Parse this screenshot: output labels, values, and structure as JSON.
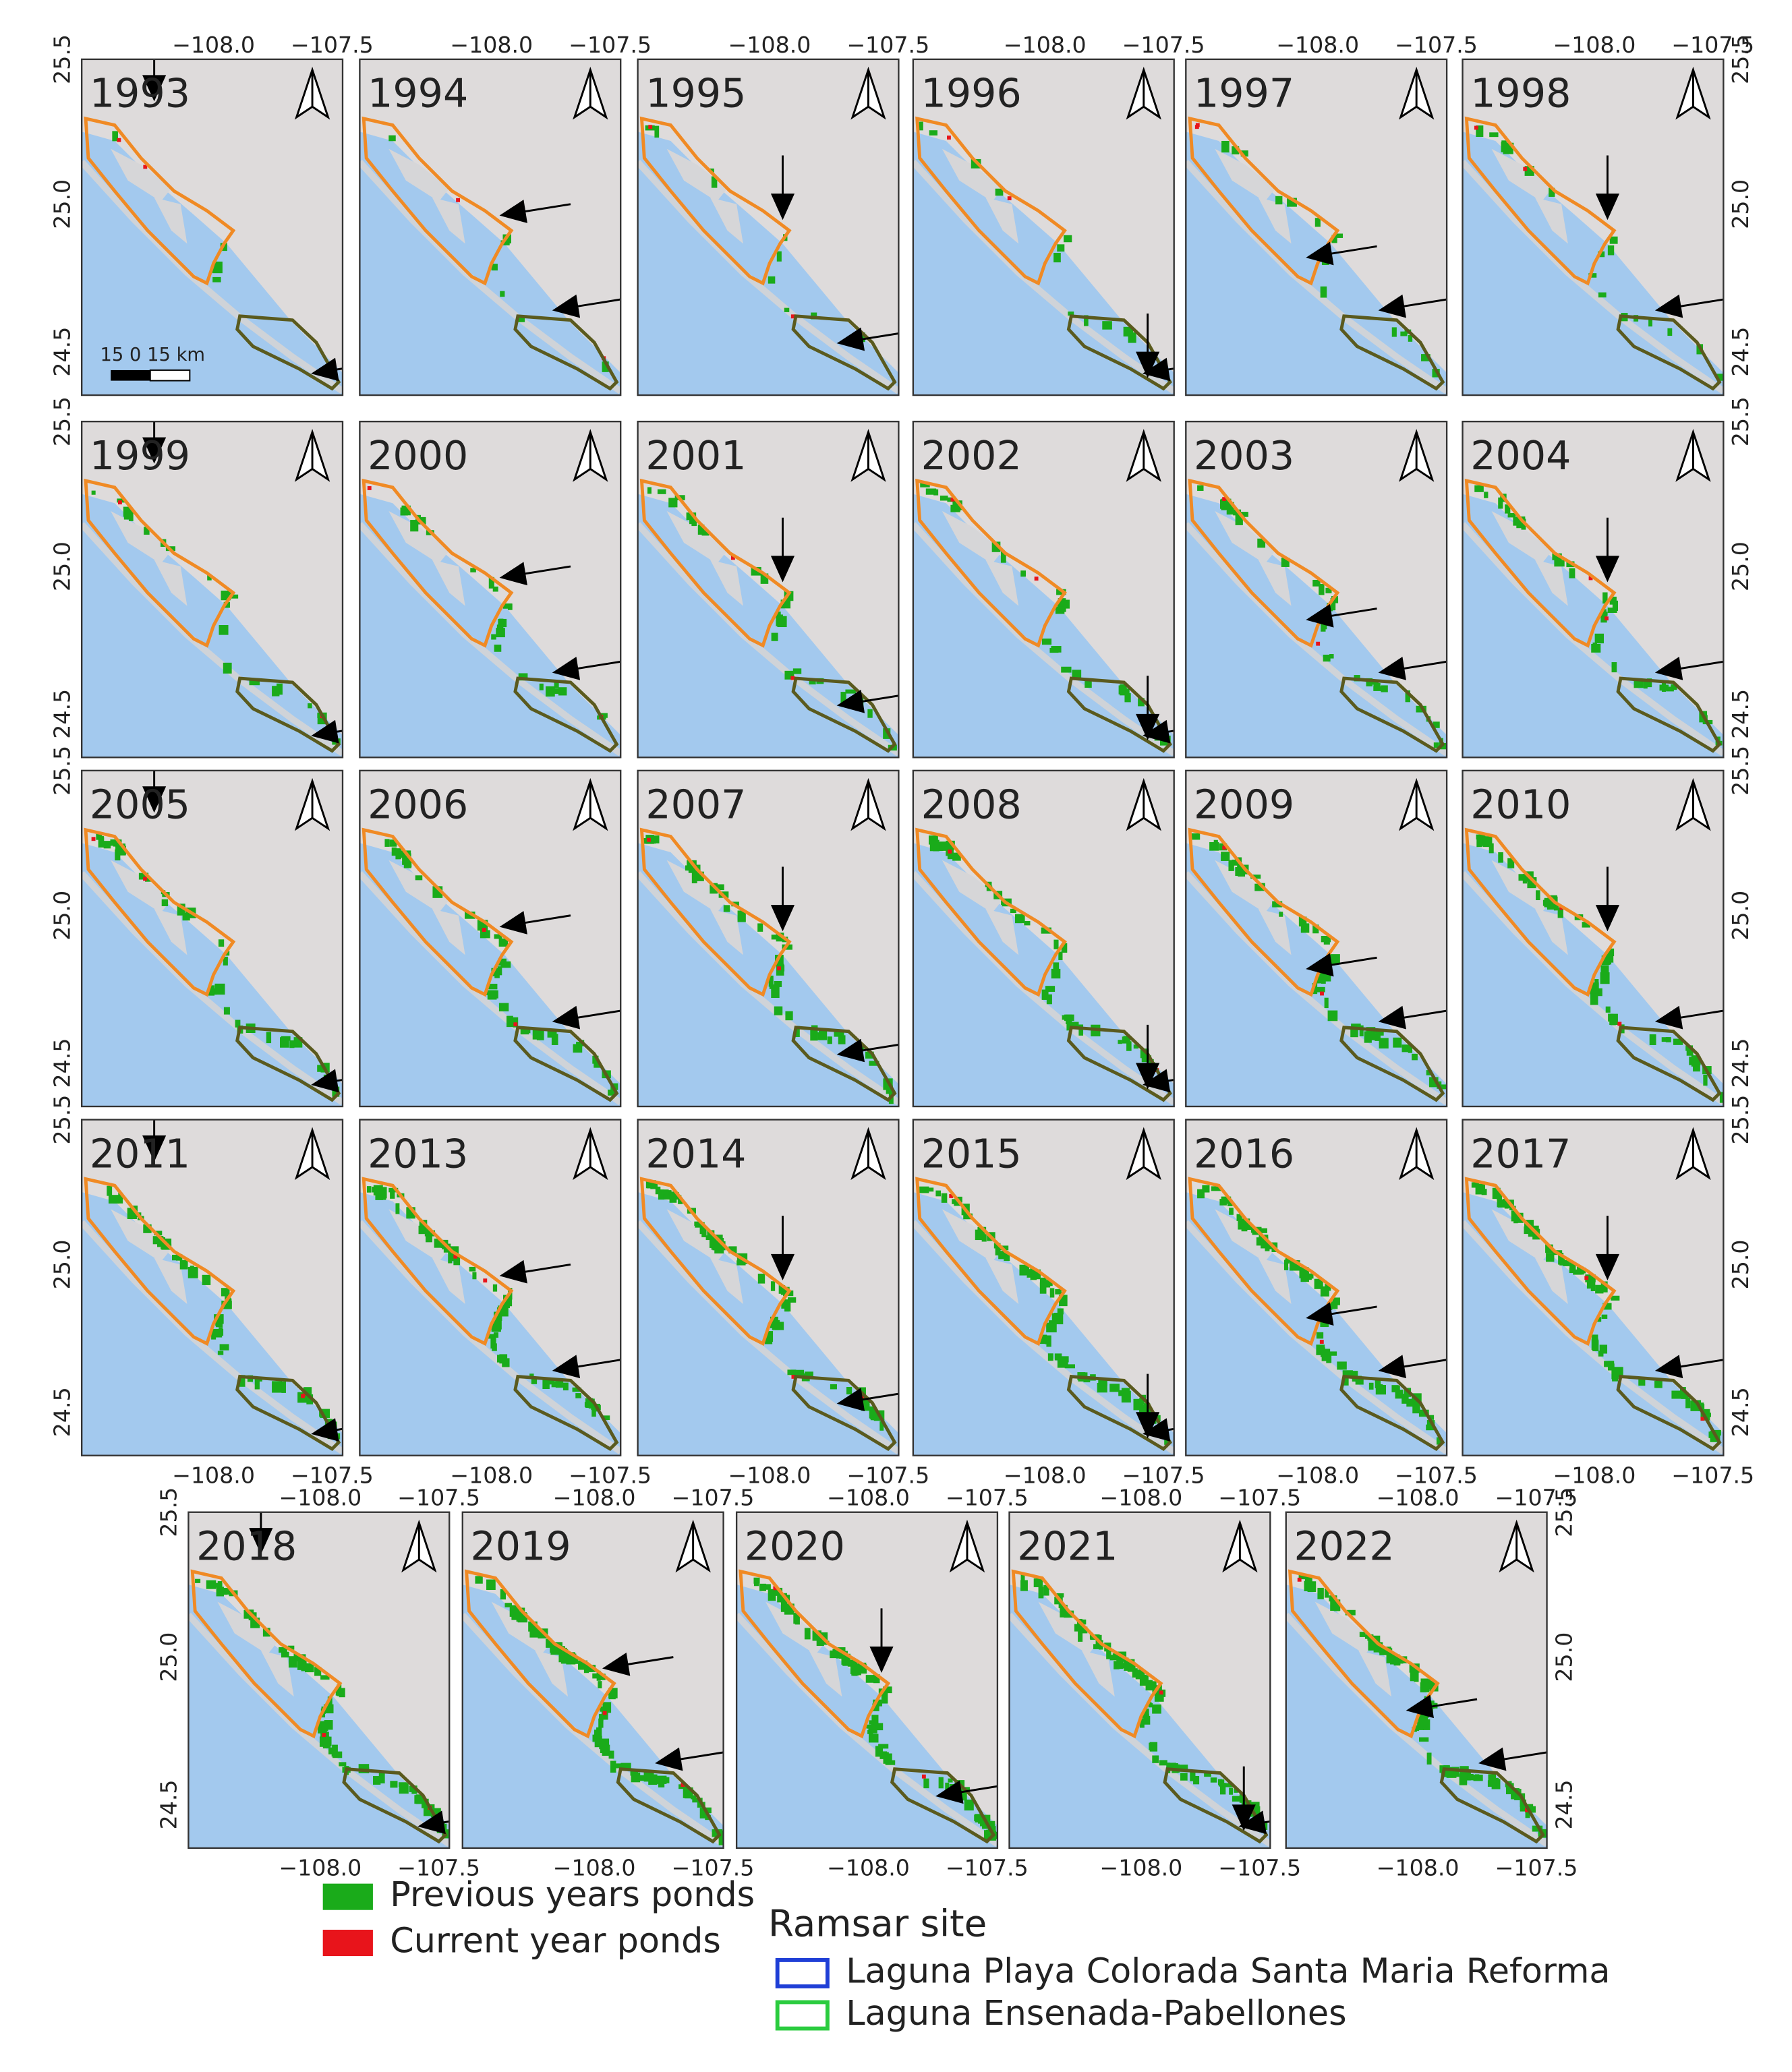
{
  "panels": [
    {
      "year": "1993"
    },
    {
      "year": "1994"
    },
    {
      "year": "1995"
    },
    {
      "year": "1996"
    },
    {
      "year": "1997"
    },
    {
      "year": "1998"
    },
    {
      "year": "1999"
    },
    {
      "year": "2000"
    },
    {
      "year": "2001"
    },
    {
      "year": "2002"
    },
    {
      "year": "2003"
    },
    {
      "year": "2004"
    },
    {
      "year": "2005"
    },
    {
      "year": "2006"
    },
    {
      "year": "2007"
    },
    {
      "year": "2008"
    },
    {
      "year": "2009"
    },
    {
      "year": "2010"
    },
    {
      "year": "2011"
    },
    {
      "year": "2013"
    },
    {
      "year": "2014"
    },
    {
      "year": "2015"
    },
    {
      "year": "2016"
    },
    {
      "year": "2017"
    },
    {
      "year": "2018"
    },
    {
      "year": "2019"
    },
    {
      "year": "2020"
    },
    {
      "year": "2021"
    },
    {
      "year": "2022"
    }
  ],
  "lon_ticks": [
    "−108.0",
    "−107.5"
  ],
  "lat_ticks": [
    "25.5",
    "25.0",
    "24.5"
  ],
  "scale_bar": "15   0   15 km",
  "legend": {
    "ponds": [
      {
        "label": "Previous years ponds",
        "color": "#1aab1a"
      },
      {
        "label": "Current year ponds",
        "color": "#e8141b"
      }
    ],
    "ramsar_title": "Ramsar site",
    "ramsar": [
      {
        "label": "Laguna Playa Colorada Santa Maria Reforma",
        "color": "#1f3fd6"
      },
      {
        "label": "Laguna Ensenada-Pabellones",
        "color": "#2bcc3f"
      }
    ]
  }
}
